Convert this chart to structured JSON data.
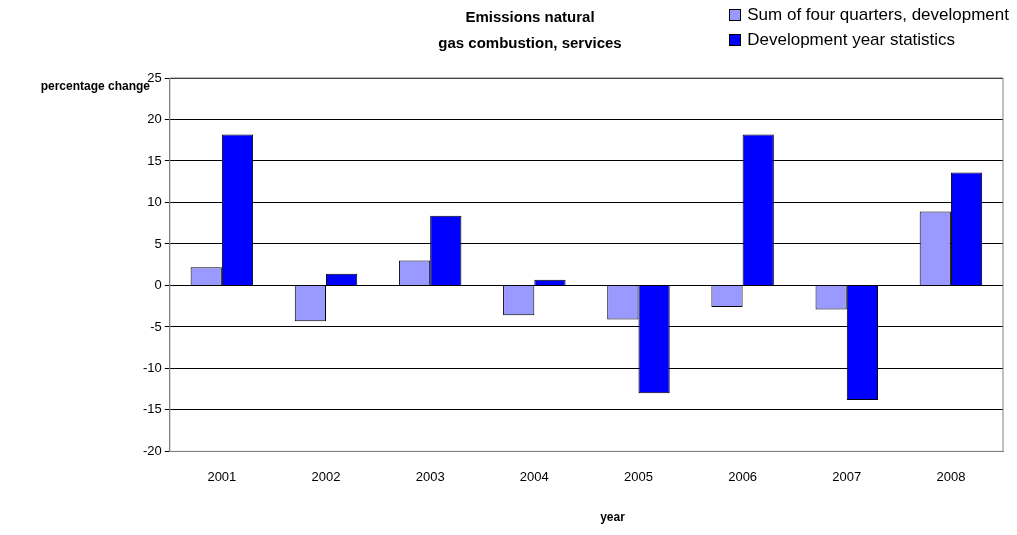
{
  "chart_data": {
    "type": "bar",
    "title": "Emissions natural\ngas combustion, services",
    "ylabel": "percentage change",
    "xlabel": "year",
    "categories": [
      "2001",
      "2002",
      "2003",
      "2004",
      "2005",
      "2006",
      "2007",
      "2008"
    ],
    "series": [
      {
        "name": "Sum of four quarters, development",
        "color": "#9999ff",
        "values": [
          2.2,
          -4.3,
          3.0,
          -3.6,
          -4.1,
          -2.6,
          -2.9,
          8.9
        ]
      },
      {
        "name": "Development year statistics",
        "color": "#0000ff",
        "values": [
          18.2,
          1.4,
          8.4,
          0.7,
          -13.0,
          18.2,
          -13.8,
          13.6
        ]
      }
    ],
    "ylim": [
      -20,
      25
    ],
    "yticks": [
      -20,
      -15,
      -10,
      -5,
      0,
      5,
      10,
      15,
      20,
      25
    ],
    "grid": "y",
    "legend": "top right"
  }
}
